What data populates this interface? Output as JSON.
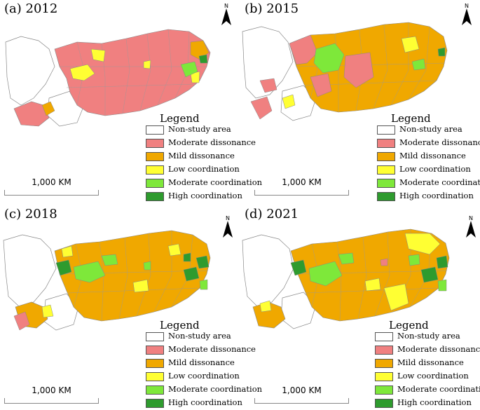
{
  "panels": [
    {
      "title": "(a) 2012"
    },
    {
      "title": "(b) 2015"
    },
    {
      "title": "(c) 2018"
    },
    {
      "title": "(d) 2021"
    }
  ],
  "north_label": "N",
  "scale_label": "1,000 KM",
  "legend": {
    "title": "Legend",
    "items": [
      {
        "label": "Non-study area",
        "color": "#ffffff"
      },
      {
        "label": "Moderate dissonance",
        "color": "#f08080"
      },
      {
        "label": "Mild dissonance",
        "color": "#f0a800"
      },
      {
        "label": "Low coordination",
        "color": "#ffff33"
      },
      {
        "label": "Moderate coordination",
        "color": "#7ee83a"
      },
      {
        "label": "High coordination",
        "color": "#2e9b2e"
      }
    ]
  }
}
